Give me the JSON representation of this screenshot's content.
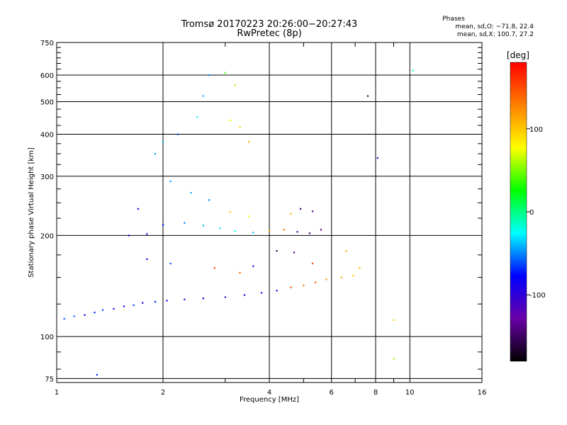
{
  "header": {
    "title": "Tromsø 20170223 20:26:00−20:27:43",
    "subtitle": "RwPretec (8p)",
    "phases_label": "Phases",
    "phase_o": "mean, sd,O: −71.8, 22.4",
    "phase_x": "mean, sd,X: 100.7, 27.2"
  },
  "chart_data": {
    "type": "scatter",
    "xlabel": "Frequency [MHz]",
    "ylabel": "Stationary phase Virtual Height [km]",
    "xscale": "log",
    "yscale": "log",
    "xlim": [
      1,
      16
    ],
    "ylim": [
      73,
      750
    ],
    "x_ticks": [
      1,
      2,
      4,
      6,
      8,
      10,
      16
    ],
    "x_minor_ticks": [
      3,
      5,
      7,
      9
    ],
    "y_ticks": [
      75,
      100,
      200,
      300,
      400,
      500,
      600,
      750
    ],
    "y_minor_ticks": [
      80,
      90,
      125,
      150,
      175,
      225,
      250,
      275,
      325,
      350,
      375,
      425,
      450,
      475,
      525,
      550,
      575,
      625,
      650,
      675,
      700,
      725
    ],
    "grid": true,
    "colorbar": {
      "label": "[deg]",
      "range": [
        -180,
        180
      ],
      "ticks": [
        100,
        0,
        -100
      ],
      "colors": [
        "#000000",
        "#6a00a8",
        "#0000ff",
        "#00ffff",
        "#00ff00",
        "#ffff00",
        "#ff8000",
        "#ff0000"
      ]
    },
    "series": [
      {
        "values": [
          {
            "x": 1.05,
            "y": 113,
            "phase": -60
          },
          {
            "x": 1.12,
            "y": 115,
            "phase": -55
          },
          {
            "x": 1.2,
            "y": 116,
            "phase": -80
          },
          {
            "x": 1.28,
            "y": 118,
            "phase": -70
          },
          {
            "x": 1.35,
            "y": 120,
            "phase": -65
          },
          {
            "x": 1.45,
            "y": 121,
            "phase": -85
          },
          {
            "x": 1.55,
            "y": 123,
            "phase": -75
          },
          {
            "x": 1.65,
            "y": 124,
            "phase": -60
          },
          {
            "x": 1.75,
            "y": 126,
            "phase": -90
          },
          {
            "x": 1.9,
            "y": 127,
            "phase": -70
          },
          {
            "x": 2.05,
            "y": 128,
            "phase": -80
          },
          {
            "x": 2.3,
            "y": 129,
            "phase": -95
          },
          {
            "x": 2.6,
            "y": 130,
            "phase": -85
          },
          {
            "x": 3.0,
            "y": 131,
            "phase": -100
          },
          {
            "x": 3.4,
            "y": 133,
            "phase": -90
          },
          {
            "x": 3.8,
            "y": 135,
            "phase": -95
          },
          {
            "x": 4.2,
            "y": 137,
            "phase": -80
          },
          {
            "x": 4.6,
            "y": 140,
            "phase": 140
          },
          {
            "x": 5.0,
            "y": 142,
            "phase": 130
          },
          {
            "x": 5.4,
            "y": 145,
            "phase": 145
          },
          {
            "x": 5.8,
            "y": 148,
            "phase": 120
          },
          {
            "x": 6.4,
            "y": 150,
            "phase": 110
          },
          {
            "x": 6.9,
            "y": 152,
            "phase": 95
          },
          {
            "x": 7.2,
            "y": 160,
            "phase": 105
          },
          {
            "x": 1.6,
            "y": 200,
            "phase": -90
          },
          {
            "x": 1.8,
            "y": 202,
            "phase": -110
          },
          {
            "x": 2.0,
            "y": 215,
            "phase": -70
          },
          {
            "x": 2.3,
            "y": 218,
            "phase": -50
          },
          {
            "x": 2.6,
            "y": 214,
            "phase": -40
          },
          {
            "x": 2.9,
            "y": 210,
            "phase": -30
          },
          {
            "x": 3.2,
            "y": 206,
            "phase": -20
          },
          {
            "x": 3.6,
            "y": 204,
            "phase": -40
          },
          {
            "x": 4.0,
            "y": 206,
            "phase": 120
          },
          {
            "x": 4.4,
            "y": 208,
            "phase": 130
          },
          {
            "x": 4.8,
            "y": 205,
            "phase": -140
          },
          {
            "x": 5.2,
            "y": 203,
            "phase": -150
          },
          {
            "x": 5.6,
            "y": 208,
            "phase": -130
          },
          {
            "x": 4.9,
            "y": 240,
            "phase": -150
          },
          {
            "x": 5.3,
            "y": 236,
            "phase": -140
          },
          {
            "x": 4.6,
            "y": 232,
            "phase": 110
          },
          {
            "x": 3.1,
            "y": 235,
            "phase": 95
          },
          {
            "x": 3.5,
            "y": 228,
            "phase": 80
          },
          {
            "x": 2.7,
            "y": 255,
            "phase": -50
          },
          {
            "x": 2.4,
            "y": 268,
            "phase": -40
          },
          {
            "x": 2.1,
            "y": 290,
            "phase": -45
          },
          {
            "x": 1.9,
            "y": 350,
            "phase": -45
          },
          {
            "x": 2.0,
            "y": 380,
            "phase": -40
          },
          {
            "x": 2.2,
            "y": 400,
            "phase": -60
          },
          {
            "x": 2.5,
            "y": 450,
            "phase": -30
          },
          {
            "x": 2.6,
            "y": 520,
            "phase": -40
          },
          {
            "x": 2.7,
            "y": 600,
            "phase": -50
          },
          {
            "x": 3.1,
            "y": 440,
            "phase": 80
          },
          {
            "x": 3.3,
            "y": 420,
            "phase": 95
          },
          {
            "x": 3.5,
            "y": 380,
            "phase": 110
          },
          {
            "x": 3.2,
            "y": 560,
            "phase": 60
          },
          {
            "x": 3.0,
            "y": 610,
            "phase": 40
          },
          {
            "x": 1.7,
            "y": 240,
            "phase": -100
          },
          {
            "x": 1.8,
            "y": 170,
            "phase": -85
          },
          {
            "x": 2.1,
            "y": 165,
            "phase": -60
          },
          {
            "x": 2.8,
            "y": 160,
            "phase": 150
          },
          {
            "x": 3.3,
            "y": 155,
            "phase": 140
          },
          {
            "x": 3.6,
            "y": 162,
            "phase": -90
          },
          {
            "x": 4.2,
            "y": 180,
            "phase": -150
          },
          {
            "x": 4.7,
            "y": 178,
            "phase": -140
          },
          {
            "x": 5.3,
            "y": 165,
            "phase": 150
          },
          {
            "x": 6.6,
            "y": 180,
            "phase": 110
          },
          {
            "x": 1.3,
            "y": 77,
            "phase": -70
          },
          {
            "x": 9.0,
            "y": 112,
            "phase": 100
          },
          {
            "x": 9.0,
            "y": 86,
            "phase": 60
          },
          {
            "x": 10.2,
            "y": 620,
            "phase": -10
          },
          {
            "x": 7.6,
            "y": 520,
            "phase": -150
          },
          {
            "x": 8.1,
            "y": 340,
            "phase": -110
          }
        ]
      }
    ]
  }
}
